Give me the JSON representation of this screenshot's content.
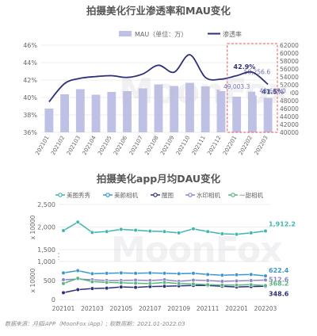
{
  "chart_data": [
    {
      "type": "bar+line",
      "title": "拍摄美化行业渗透率和MAU变化",
      "categories": [
        "202101",
        "202102",
        "202103",
        "202104",
        "202105",
        "202106",
        "202107",
        "202108",
        "202109",
        "202110",
        "202111",
        "202112",
        "202201",
        "202202",
        "202203"
      ],
      "legend_position": "top",
      "series": [
        {
          "name": "MAU（单位：万）",
          "type": "bar",
          "axis": "right",
          "color": "#bfc0e6",
          "values": [
            46000,
            49600,
            50900,
            49500,
            50200,
            50400,
            51100,
            52100,
            51700,
            52500,
            51600,
            50800,
            49003.3,
            50256.6,
            48667.0
          ]
        },
        {
          "name": "渗透率",
          "type": "line",
          "axis": "left",
          "color": "#2e2f7a",
          "values": [
            39.5,
            41.6,
            42.2,
            42.4,
            42.5,
            42.3,
            42.7,
            43.7,
            42.9,
            44.9,
            42.3,
            42.1,
            42.5,
            42.9,
            41.5
          ]
        }
      ],
      "left_axis": {
        "ylim": [
          36,
          46
        ],
        "ticks": [
          "36%",
          "38%",
          "40%",
          "42%",
          "44%",
          "46%"
        ]
      },
      "right_axis": {
        "ylim": [
          40000,
          62000
        ],
        "ticks": [
          "40000",
          "42000",
          "44000",
          "46000",
          "48000",
          "50000",
          "52000",
          "54000",
          "56000",
          "58000",
          "60000",
          "62000"
        ]
      },
      "bar_labels": [
        "49,003.3",
        "50,256.6",
        "48,667.0"
      ],
      "line_labels": [
        "42.9%",
        "41.5%"
      ],
      "grid": true
    },
    {
      "type": "line",
      "title": "拍摄美化app月均DAU变化",
      "categories": [
        "202101",
        "202102",
        "202103",
        "202104",
        "202105",
        "202106",
        "202107",
        "202108",
        "202109",
        "202110",
        "202111",
        "202112",
        "202201",
        "202202",
        "202203"
      ],
      "x_tick_labels": [
        "202101",
        "202103",
        "202105",
        "202107",
        "202109",
        "202111",
        "202201",
        "202203"
      ],
      "ylabel_top": "x 10000",
      "ylabel_bottom": "x 10000",
      "upper_axis": {
        "ylim": [
          1500,
          2500
        ],
        "ticks": [
          "1,500",
          "2,000",
          "2,500"
        ]
      },
      "lower_axis": {
        "ylim": [
          0,
          1000
        ],
        "ticks": [
          "0",
          "500",
          "1,000"
        ]
      },
      "legend_position": "top",
      "series": [
        {
          "name": "美图秀秀",
          "color": "#3fb6b0",
          "values": [
            1920,
            2110,
            1880,
            1900,
            1950,
            1930,
            1910,
            1900,
            1870,
            1960,
            1900,
            1850,
            1840,
            1870,
            1912.2
          ]
        },
        {
          "name": "美颜相机",
          "color": "#3a99c9",
          "values": [
            700,
            760,
            680,
            690,
            700,
            690,
            700,
            690,
            680,
            690,
            660,
            640,
            650,
            660,
            622.4
          ]
        },
        {
          "name": "醒图",
          "color": "#2f3178",
          "values": [
            180,
            260,
            290,
            300,
            330,
            320,
            340,
            350,
            360,
            370,
            370,
            350,
            330,
            340,
            348.6
          ]
        },
        {
          "name": "水印相机",
          "color": "#8e86c6",
          "values": [
            520,
            540,
            520,
            500,
            500,
            510,
            500,
            520,
            480,
            510,
            500,
            480,
            490,
            500,
            512.6
          ]
        },
        {
          "name": "一甜相机",
          "color": "#5ab580",
          "values": [
            420,
            560,
            470,
            450,
            440,
            430,
            420,
            450,
            420,
            410,
            390,
            380,
            380,
            390,
            368.2
          ]
        }
      ],
      "end_labels": [
        "1,912.2",
        "622.4",
        "512.6",
        "368.2",
        "348.6"
      ],
      "grid": true
    }
  ],
  "watermark": "MoonFox",
  "footer": "数据来源：月狐iAPP（MoonFox iApp）; 取数周期：2021.01-2022.03"
}
